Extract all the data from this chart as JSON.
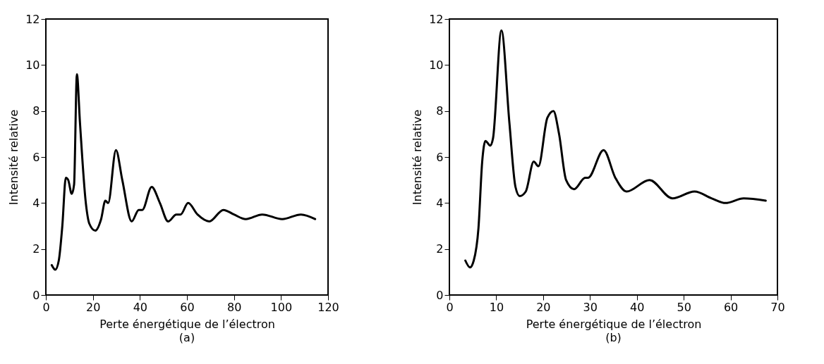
{
  "chart_data": [
    {
      "type": "line",
      "title": "(a)",
      "xlabel": "Perte énergétique de l’électron",
      "ylabel": "Intensité relative",
      "xlim": [
        0,
        120
      ],
      "xticks": [
        0,
        20,
        40,
        60,
        80,
        100,
        120
      ],
      "ylim": [
        0,
        12
      ],
      "yticks": [
        0,
        2,
        4,
        6,
        8,
        10,
        12
      ],
      "x": [
        2.5,
        4,
        5.5,
        7,
        8.5,
        9.5,
        11,
        12,
        13.2,
        14.5,
        17,
        18.5,
        21,
        23.5,
        25.3,
        26.5,
        29.8,
        32.5,
        36.5,
        39.5,
        41,
        45,
        48.5,
        52,
        55.5,
        57.3,
        60.5,
        64.5,
        69.5,
        75.5,
        80,
        85,
        92,
        100.5,
        108.5,
        114.5
      ],
      "series": [
        {
          "color": "#000000",
          "values": [
            1.3,
            1.1,
            1.5,
            3.0,
            5.1,
            5.0,
            4.4,
            4.8,
            9.6,
            7.5,
            4.0,
            3.1,
            2.8,
            3.3,
            4.1,
            4.0,
            6.3,
            5.0,
            3.2,
            3.7,
            3.7,
            4.7,
            4.0,
            3.2,
            3.5,
            3.5,
            4.0,
            3.5,
            3.2,
            3.7,
            3.5,
            3.3,
            3.5,
            3.3,
            3.5,
            3.3
          ]
        }
      ]
    },
    {
      "type": "line",
      "title": "(b)",
      "xlabel": "Perte énergétique de l’électron",
      "ylabel": "Intensité relative",
      "xlim": [
        0,
        70
      ],
      "xticks": [
        0,
        10,
        20,
        30,
        40,
        50,
        60,
        70
      ],
      "ylim": [
        0,
        12
      ],
      "yticks": [
        0,
        2,
        4,
        6,
        8,
        10,
        12
      ],
      "x": [
        3.4,
        4.4,
        5.2,
        6.2,
        7.0,
        7.7,
        8.7,
        9.3,
        11.1,
        12.8,
        14.1,
        15,
        16.3,
        18,
        19,
        20.9,
        22.2,
        23.4,
        24.9,
        26.6,
        29,
        29.6,
        32.9,
        35.4,
        37.8,
        42.7,
        47.6,
        52.3,
        56,
        58.9,
        62.8,
        67.5
      ],
      "series": [
        {
          "color": "#000000",
          "values": [
            1.5,
            1.2,
            1.5,
            2.9,
            5.8,
            6.7,
            6.5,
            6.8,
            11.5,
            7.5,
            4.7,
            4.3,
            4.5,
            5.8,
            5.6,
            7.7,
            8.0,
            7.0,
            5.0,
            4.6,
            5.1,
            5.1,
            6.3,
            5.1,
            4.5,
            5.0,
            4.2,
            4.5,
            4.2,
            4.0,
            4.2,
            4.1
          ]
        }
      ]
    }
  ]
}
